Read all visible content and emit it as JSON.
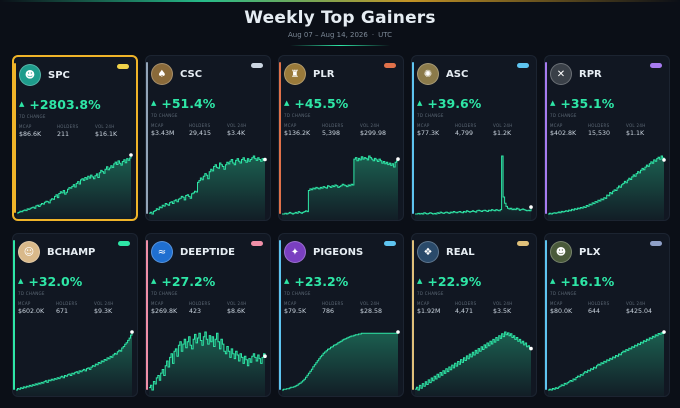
{
  "header": {
    "title": "Weekly Top Gainers",
    "date_range": "Aug 07 – Aug 14, 2026",
    "timezone": "UTC"
  },
  "labels": {
    "change": "7D CHANGE",
    "mcap": "MCAP",
    "holders": "HOLDERS",
    "vol": "VOL 24H"
  },
  "colors": {
    "positive": "#2ee6a6",
    "highlight_border": "#f0b429"
  },
  "cards": [
    {
      "ticker": "SPC",
      "change": "+2803.8%",
      "mcap": "$86.6K",
      "holders": "211",
      "vol": "$16.1K",
      "pill_color": "#f0d24a",
      "accent": "#f0b429",
      "avatar_bg": "#1e9c8c",
      "avatar_icon": "avatar-character-icon",
      "highlight": true
    },
    {
      "ticker": "CSC",
      "change": "+51.4%",
      "mcap": "$3.43M",
      "holders": "29,415",
      "vol": "$3.4K",
      "pill_color": "#cbd5e1",
      "accent": "#93a4b8",
      "avatar_bg": "#8a6a3a",
      "avatar_icon": "spade-coin-icon",
      "highlight": false
    },
    {
      "ticker": "PLR",
      "change": "+45.5%",
      "mcap": "$136.2K",
      "holders": "5,398",
      "vol": "$299.98",
      "pill_color": "#e0714a",
      "accent": "#e0714a",
      "avatar_bg": "#9a7a3a",
      "avatar_icon": "candle-coin-icon",
      "highlight": false
    },
    {
      "ticker": "ASC",
      "change": "+39.6%",
      "mcap": "$77.3K",
      "holders": "4,799",
      "vol": "$1.2K",
      "pill_color": "#5ec4f0",
      "accent": "#5ec4f0",
      "avatar_bg": "#8b7a4a",
      "avatar_icon": "ornament-coin-icon",
      "highlight": false
    },
    {
      "ticker": "RPR",
      "change": "+35.1%",
      "mcap": "$402.8K",
      "holders": "15,530",
      "vol": "$1.1K",
      "pill_color": "#a77bf0",
      "accent": "#a77bf0",
      "avatar_bg": "#3a4048",
      "avatar_icon": "rpr-logo-icon",
      "highlight": false
    },
    {
      "ticker": "BCHAMP",
      "change": "+32.0%",
      "mcap": "$602.0K",
      "holders": "671",
      "vol": "$9.3K",
      "pill_color": "#2ee6a6",
      "accent": "#2ee6a6",
      "avatar_bg": "#d9b98a",
      "avatar_icon": "champ-character-icon",
      "highlight": false
    },
    {
      "ticker": "DEEPTIDE",
      "change": "+27.2%",
      "mcap": "$269.8K",
      "holders": "423",
      "vol": "$8.6K",
      "pill_color": "#f08fa8",
      "accent": "#f08fa8",
      "avatar_bg": "#1f6fd0",
      "avatar_icon": "wave-icon",
      "highlight": false
    },
    {
      "ticker": "PIGEONS",
      "change": "+23.2%",
      "mcap": "$79.5K",
      "holders": "786",
      "vol": "$28.58",
      "pill_color": "#5ec4f0",
      "accent": "#5ec4f0",
      "avatar_bg": "#7a3fc0",
      "avatar_icon": "pigeon-icon",
      "highlight": false
    },
    {
      "ticker": "REAL",
      "change": "+22.9%",
      "mcap": "$1.92M",
      "holders": "4,471",
      "vol": "$3.5K",
      "pill_color": "#e0c07a",
      "accent": "#e0c07a",
      "avatar_bg": "#2a4a6a",
      "avatar_icon": "network-icon",
      "highlight": false
    },
    {
      "ticker": "PLX",
      "change": "+16.1%",
      "mcap": "$80.0K",
      "holders": "644",
      "vol": "$425.04",
      "pill_color": "#8fa0c8",
      "accent": "#5ec4f0",
      "avatar_bg": "#4a5a3a",
      "avatar_icon": "character-icon",
      "highlight": false
    }
  ],
  "sparklines": [
    [
      2,
      3,
      5,
      4,
      6,
      7,
      6,
      9,
      8,
      10,
      11,
      12,
      10,
      14,
      15,
      13,
      16,
      18,
      17,
      20,
      22,
      21,
      19,
      24,
      26,
      25,
      30,
      33,
      28,
      35,
      38,
      36,
      40,
      34,
      37,
      42,
      45,
      44,
      47,
      50,
      46,
      52,
      55,
      51,
      58,
      60,
      57,
      62,
      59,
      64,
      61,
      66,
      63,
      60,
      65,
      68,
      62,
      70,
      74,
      72,
      69,
      76,
      80,
      75,
      78,
      82,
      79,
      85,
      88,
      84,
      90,
      86,
      83,
      89,
      92,
      87,
      94,
      91,
      95,
      100
    ],
    [
      5,
      6,
      4,
      7,
      8,
      10,
      9,
      12,
      11,
      14,
      13,
      16,
      15,
      14,
      17,
      18,
      16,
      19,
      20,
      18,
      21,
      22,
      24,
      23,
      20,
      25,
      26,
      24,
      22,
      27,
      28,
      30,
      29,
      40,
      42,
      45,
      43,
      47,
      50,
      48,
      44,
      52,
      55,
      53,
      58,
      60,
      57,
      56,
      62,
      60,
      58,
      55,
      60,
      63,
      61,
      64,
      66,
      62,
      60,
      65,
      67,
      64,
      62,
      66,
      68,
      65,
      63,
      67,
      64,
      66,
      68,
      70,
      67,
      65,
      68,
      66,
      64,
      67,
      65,
      66
    ],
    [
      10,
      10,
      11,
      10,
      11,
      12,
      11,
      10,
      11,
      12,
      11,
      13,
      12,
      11,
      12,
      13,
      14,
      13,
      40,
      42,
      41,
      43,
      42,
      44,
      43,
      42,
      44,
      43,
      45,
      44,
      43,
      46,
      45,
      44,
      46,
      45,
      47,
      46,
      44,
      45,
      46,
      48,
      47,
      46,
      45,
      47,
      46,
      48,
      47,
      80,
      82,
      78,
      81,
      79,
      83,
      80,
      82,
      81,
      79,
      84,
      82,
      80,
      78,
      81,
      79,
      77,
      80,
      78,
      75,
      77,
      74,
      76,
      73,
      75,
      72,
      74,
      70,
      76,
      78,
      80
    ],
    [
      3,
      3,
      4,
      3,
      4,
      3,
      5,
      4,
      3,
      4,
      5,
      4,
      3,
      4,
      3,
      5,
      4,
      6,
      5,
      4,
      5,
      6,
      5,
      4,
      6,
      5,
      7,
      6,
      5,
      6,
      7,
      6,
      5,
      7,
      6,
      8,
      7,
      6,
      7,
      8,
      7,
      6,
      8,
      9,
      8,
      7,
      8,
      9,
      8,
      7,
      9,
      8,
      10,
      9,
      8,
      10,
      9,
      8,
      10,
      95,
      30,
      20,
      15,
      12,
      11,
      12,
      10,
      11,
      10,
      12,
      11,
      9,
      10,
      11,
      10,
      9,
      8,
      9,
      8,
      14
    ],
    [
      5,
      6,
      5,
      6,
      7,
      6,
      7,
      8,
      7,
      9,
      8,
      9,
      10,
      9,
      11,
      10,
      12,
      11,
      13,
      12,
      14,
      13,
      15,
      14,
      16,
      15,
      18,
      17,
      20,
      19,
      22,
      21,
      24,
      23,
      26,
      25,
      28,
      27,
      30,
      29,
      34,
      33,
      38,
      36,
      40,
      42,
      41,
      45,
      48,
      46,
      50,
      52,
      55,
      53,
      57,
      60,
      58,
      62,
      65,
      63,
      67,
      70,
      68,
      72,
      75,
      73,
      77,
      80,
      78,
      82,
      85,
      83,
      88,
      86,
      90,
      92,
      89,
      94,
      91,
      88
    ],
    [
      10,
      12,
      11,
      13,
      12,
      14,
      13,
      15,
      14,
      16,
      15,
      17,
      16,
      18,
      17,
      19,
      18,
      20,
      19,
      21,
      22,
      20,
      23,
      22,
      24,
      23,
      25,
      24,
      26,
      25,
      27,
      28,
      26,
      29,
      28,
      30,
      31,
      29,
      32,
      31,
      33,
      34,
      32,
      35,
      34,
      36,
      37,
      35,
      38,
      39,
      37,
      40,
      42,
      41,
      44,
      43,
      46,
      45,
      48,
      47,
      50,
      49,
      52,
      51,
      54,
      53,
      56,
      58,
      57,
      60,
      62,
      61,
      65,
      67,
      70,
      72,
      75,
      78,
      82,
      86
    ],
    [
      30,
      32,
      28,
      35,
      33,
      38,
      40,
      36,
      42,
      45,
      40,
      48,
      52,
      47,
      55,
      58,
      50,
      60,
      62,
      56,
      65,
      68,
      60,
      66,
      70,
      63,
      68,
      72,
      65,
      62,
      70,
      74,
      67,
      71,
      75,
      69,
      65,
      72,
      76,
      70,
      66,
      73,
      68,
      72,
      64,
      70,
      75,
      68,
      62,
      70,
      66,
      60,
      58,
      64,
      60,
      55,
      62,
      58,
      54,
      60,
      57,
      52,
      58,
      55,
      50,
      56,
      53,
      48,
      54,
      51,
      56,
      58,
      55,
      52,
      57,
      54,
      50,
      55,
      58,
      56
    ],
    [
      5,
      6,
      6,
      7,
      7,
      8,
      9,
      9,
      10,
      11,
      12,
      14,
      15,
      17,
      19,
      21,
      24,
      27,
      30,
      33,
      36,
      40,
      43,
      46,
      49,
      52,
      55,
      57,
      60,
      62,
      64,
      66,
      67,
      69,
      70,
      72,
      73,
      74,
      76,
      77,
      78,
      80,
      81,
      82,
      83,
      84,
      85,
      86,
      86,
      87,
      88,
      88,
      89,
      89,
      90,
      90,
      90,
      90,
      90,
      90,
      90,
      90,
      90,
      90,
      90,
      90,
      90,
      90,
      90,
      90,
      90,
      90,
      90,
      90,
      90,
      90,
      90,
      90,
      90,
      92
    ],
    [
      10,
      12,
      9,
      14,
      11,
      16,
      13,
      18,
      15,
      20,
      17,
      22,
      19,
      24,
      21,
      26,
      23,
      28,
      25,
      30,
      27,
      32,
      29,
      34,
      31,
      36,
      33,
      38,
      35,
      40,
      37,
      42,
      39,
      44,
      41,
      46,
      43,
      48,
      45,
      50,
      47,
      52,
      49,
      54,
      51,
      56,
      53,
      58,
      55,
      60,
      57,
      62,
      59,
      64,
      61,
      66,
      63,
      68,
      65,
      70,
      67,
      72,
      69,
      71,
      68,
      70,
      66,
      68,
      64,
      66,
      62,
      64,
      60,
      62,
      58,
      60,
      56,
      57,
      55,
      54
    ],
    [
      5,
      6,
      5,
      7,
      6,
      8,
      7,
      9,
      10,
      12,
      11,
      14,
      13,
      15,
      16,
      18,
      17,
      20,
      19,
      22,
      24,
      23,
      26,
      25,
      28,
      30,
      29,
      32,
      31,
      34,
      33,
      36,
      35,
      38,
      40,
      39,
      42,
      41,
      44,
      43,
      46,
      45,
      48,
      47,
      50,
      49,
      52,
      51,
      54,
      53,
      56,
      58,
      57,
      60,
      59,
      62,
      61,
      64,
      63,
      66,
      65,
      68,
      67,
      70,
      69,
      72,
      71,
      74,
      73,
      76,
      75,
      78,
      77,
      80,
      79,
      82,
      81,
      83,
      82,
      84
    ]
  ]
}
